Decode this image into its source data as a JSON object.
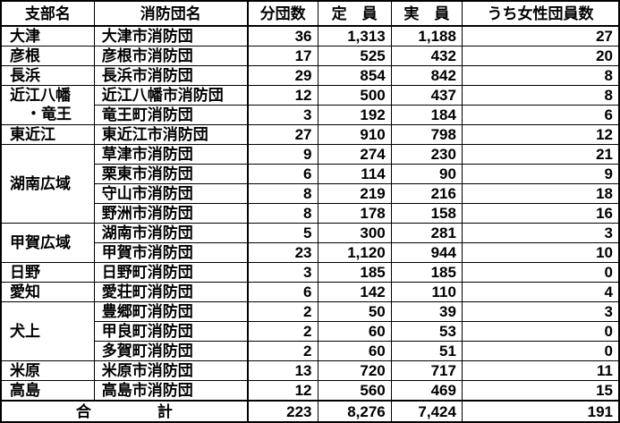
{
  "colors": {
    "border": "#000000",
    "text": "#000000",
    "background": "#ffffff"
  },
  "table": {
    "headers": [
      "支部名",
      "消防団名",
      "分団数",
      "定　員",
      "実　員",
      "うち女性団員数"
    ],
    "groups": [
      {
        "branch_lines": [
          "大津"
        ],
        "rows": [
          {
            "name": "大津市消防団",
            "divisions": "36",
            "capacity": "1,313",
            "actual": "1,188",
            "female": "27"
          }
        ]
      },
      {
        "branch_lines": [
          "彦根"
        ],
        "rows": [
          {
            "name": "彦根市消防団",
            "divisions": "17",
            "capacity": "525",
            "actual": "432",
            "female": "20"
          }
        ]
      },
      {
        "branch_lines": [
          "長浜"
        ],
        "rows": [
          {
            "name": "長浜市消防団",
            "divisions": "29",
            "capacity": "854",
            "actual": "842",
            "female": "8"
          }
        ]
      },
      {
        "branch_lines": [
          "近江八幡",
          "・竜王"
        ],
        "rows": [
          {
            "name": "近江八幡市消防団",
            "divisions": "12",
            "capacity": "500",
            "actual": "437",
            "female": "8"
          },
          {
            "name": "竜王町消防団",
            "divisions": "3",
            "capacity": "192",
            "actual": "184",
            "female": "6"
          }
        ]
      },
      {
        "branch_lines": [
          "東近江"
        ],
        "rows": [
          {
            "name": "東近江市消防団",
            "divisions": "27",
            "capacity": "910",
            "actual": "798",
            "female": "12"
          }
        ]
      },
      {
        "branch_lines": [
          "湖南広域"
        ],
        "rows": [
          {
            "name": "草津市消防団",
            "divisions": "9",
            "capacity": "274",
            "actual": "230",
            "female": "21"
          },
          {
            "name": "栗東市消防団",
            "divisions": "6",
            "capacity": "114",
            "actual": "90",
            "female": "9"
          },
          {
            "name": "守山市消防団",
            "divisions": "8",
            "capacity": "219",
            "actual": "216",
            "female": "18"
          },
          {
            "name": "野洲市消防団",
            "divisions": "8",
            "capacity": "178",
            "actual": "158",
            "female": "16"
          }
        ]
      },
      {
        "branch_lines": [
          "甲賀広域"
        ],
        "rows": [
          {
            "name": "湖南市消防団",
            "divisions": "5",
            "capacity": "300",
            "actual": "281",
            "female": "3"
          },
          {
            "name": "甲賀市消防団",
            "divisions": "23",
            "capacity": "1,120",
            "actual": "944",
            "female": "10"
          }
        ]
      },
      {
        "branch_lines": [
          "日野"
        ],
        "rows": [
          {
            "name": "日野町消防団",
            "divisions": "3",
            "capacity": "185",
            "actual": "185",
            "female": "0"
          }
        ]
      },
      {
        "branch_lines": [
          "愛知"
        ],
        "rows": [
          {
            "name": "愛荘町消防団",
            "divisions": "6",
            "capacity": "142",
            "actual": "110",
            "female": "4"
          }
        ]
      },
      {
        "branch_lines": [
          "犬上"
        ],
        "rows": [
          {
            "name": "豊郷町消防団",
            "divisions": "2",
            "capacity": "50",
            "actual": "39",
            "female": "3"
          },
          {
            "name": "甲良町消防団",
            "divisions": "2",
            "capacity": "60",
            "actual": "53",
            "female": "0"
          },
          {
            "name": "多賀町消防団",
            "divisions": "2",
            "capacity": "60",
            "actual": "51",
            "female": "0"
          }
        ]
      },
      {
        "branch_lines": [
          "米原"
        ],
        "rows": [
          {
            "name": "米原市消防団",
            "divisions": "13",
            "capacity": "720",
            "actual": "717",
            "female": "11"
          }
        ]
      },
      {
        "branch_lines": [
          "高島"
        ],
        "rows": [
          {
            "name": "高島市消防団",
            "divisions": "12",
            "capacity": "560",
            "actual": "469",
            "female": "15"
          }
        ]
      }
    ],
    "total": {
      "label_parts": [
        "合",
        "計"
      ],
      "divisions": "223",
      "capacity": "8,276",
      "actual": "7,424",
      "female": "191"
    }
  }
}
